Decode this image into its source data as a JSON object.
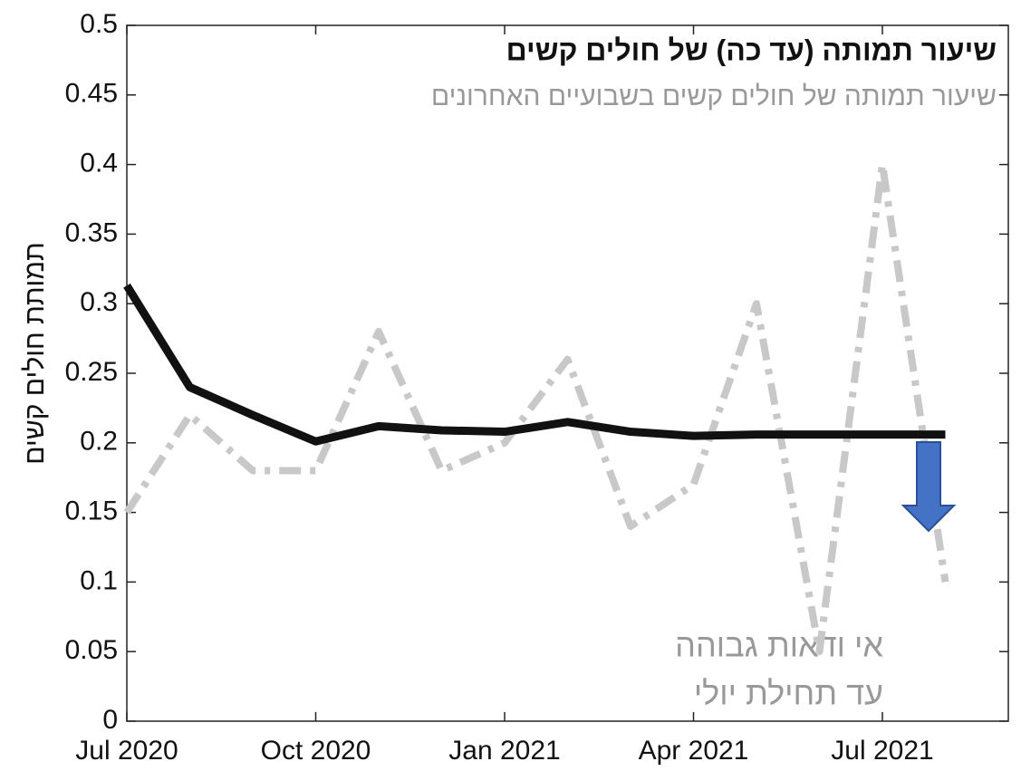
{
  "chart_data": {
    "type": "line",
    "title": "שיעור תמותה (עד כה) של חולים קשים",
    "subtitle": "שיעור תמותה של חולים קשים בשבועיים האחרונים",
    "y_label": "תמותת חולים  קשים",
    "annotation": [
      "אי ודאות גבוהה",
      "עד תחילת יולי"
    ],
    "x": [
      "2020-07",
      "2020-08",
      "2020-09",
      "2020-10",
      "2020-11",
      "2020-12",
      "2021-01",
      "2021-02",
      "2021-03",
      "2021-04",
      "2021-05",
      "2021-06",
      "2021-07",
      "2021-08"
    ],
    "series": [
      {
        "name": "שיעור תמותה (עד כה) של חולים קשים",
        "color": "#111111",
        "style": "solid",
        "values": [
          0.313,
          0.24,
          0.22,
          0.201,
          0.212,
          0.209,
          0.208,
          0.215,
          0.208,
          0.205,
          0.206,
          0.206,
          0.206,
          0.206
        ]
      },
      {
        "name": "שיעור תמותה של חולים קשים בשבועיים האחרונים",
        "color": "#c8c8c8",
        "style": "dashdot",
        "values": [
          0.15,
          0.22,
          0.18,
          0.18,
          0.28,
          0.18,
          0.2,
          0.26,
          0.14,
          0.17,
          0.3,
          0.05,
          0.4,
          0.1
        ]
      }
    ],
    "xlim": [
      "2020-07",
      "2021-09"
    ],
    "xticks": [
      {
        "value": "2020-07",
        "label": "Jul 2020"
      },
      {
        "value": "2020-10",
        "label": "Oct 2020"
      },
      {
        "value": "2021-01",
        "label": "Jan 2021"
      },
      {
        "value": "2021-04",
        "label": "Apr 2021"
      },
      {
        "value": "2021-07",
        "label": "Jul 2021"
      }
    ],
    "ylim": [
      0,
      0.5
    ],
    "yticks": [
      0,
      0.05,
      0.1,
      0.15,
      0.2,
      0.25,
      0.3,
      0.35,
      0.4,
      0.45,
      0.5
    ],
    "grid": false
  }
}
